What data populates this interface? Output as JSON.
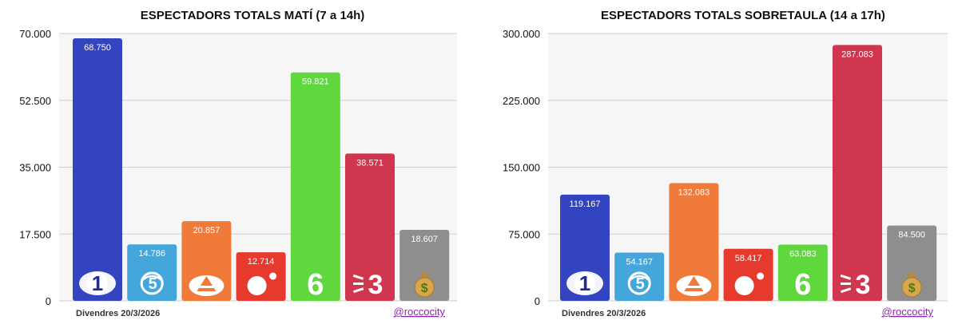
{
  "chart_data": [
    {
      "type": "bar",
      "title": "ESPECTADORS TOTALS MATÍ (7 a 14h)",
      "categories": [
        "La 1",
        "Telecinco",
        "Antena 3",
        "Cuatro",
        "laSexta",
        "TV3",
        "Other"
      ],
      "values": [
        68750,
        14786,
        20857,
        12714,
        59821,
        38571,
        18607
      ],
      "value_labels": [
        "68.750",
        "14.786",
        "20.857",
        "12.714",
        "59.821",
        "38.571",
        "18.607"
      ],
      "colors": [
        "#3344c0",
        "#45a6dc",
        "#ef7a3a",
        "#e73a2e",
        "#5fd83d",
        "#d0364e",
        "#8e8e8e"
      ],
      "icons": [
        "la1-icon",
        "telecinco-icon",
        "antena3-icon",
        "cuatro-icon",
        "lasexta-icon",
        "tv3-icon",
        "money-bag-icon"
      ],
      "ylim": [
        0,
        70000
      ],
      "yticks": [
        0,
        17500,
        35000,
        52500,
        70000
      ],
      "ytick_labels": [
        "0",
        "17.500",
        "35.000",
        "52.500",
        "70.000"
      ],
      "xlabel": "",
      "ylabel": "",
      "grid": true,
      "footer_date": "Divendres 20/3/2026",
      "footer_handle": "@roccocity"
    },
    {
      "type": "bar",
      "title": "ESPECTADORS TOTALS SOBRETAULA (14 a 17h)",
      "categories": [
        "La 1",
        "Telecinco",
        "Antena 3",
        "Cuatro",
        "laSexta",
        "TV3",
        "Other"
      ],
      "values": [
        119167,
        54167,
        132083,
        58417,
        63083,
        287083,
        84500
      ],
      "value_labels": [
        "119.167",
        "54.167",
        "132.083",
        "58.417",
        "63.083",
        "287.083",
        "84.500"
      ],
      "colors": [
        "#3344c0",
        "#45a6dc",
        "#ef7a3a",
        "#e73a2e",
        "#5fd83d",
        "#d0364e",
        "#8e8e8e"
      ],
      "icons": [
        "la1-icon",
        "telecinco-icon",
        "antena3-icon",
        "cuatro-icon",
        "lasexta-icon",
        "tv3-icon",
        "money-bag-icon"
      ],
      "ylim": [
        0,
        300000
      ],
      "yticks": [
        0,
        75000,
        150000,
        225000,
        300000
      ],
      "ytick_labels": [
        "0",
        "75.000",
        "150.000",
        "225.000",
        "300.000"
      ],
      "xlabel": "",
      "ylabel": "",
      "grid": true,
      "footer_date": "Divendres 20/3/2026",
      "footer_handle": "@roccocity"
    }
  ]
}
